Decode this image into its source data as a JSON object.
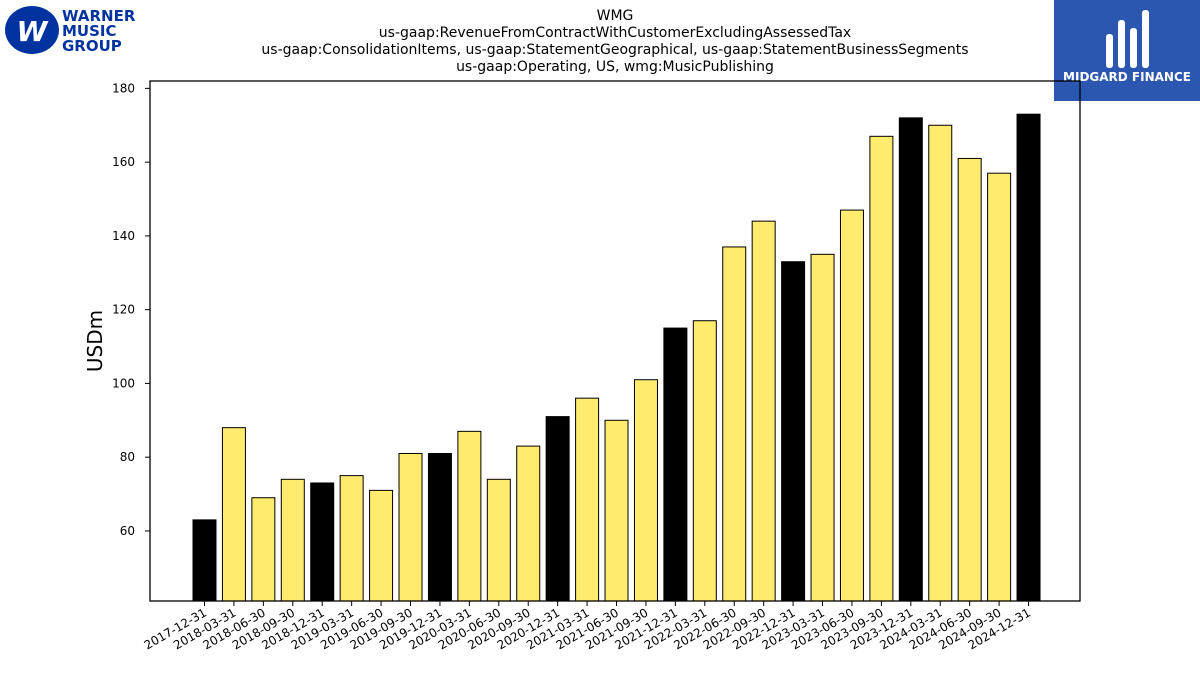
{
  "logo_left": {
    "line1": "WARNER",
    "line2": "MUSIC",
    "line3": "GROUP",
    "color": "#0033a0"
  },
  "logo_right": {
    "text": "MIDGARD FINANCE",
    "background": "#2b57b0"
  },
  "chart_data": {
    "type": "bar",
    "title_lines": [
      "WMG",
      "us-gaap:RevenueFromContractWithCustomerExcludingAssessedTax",
      "us-gaap:ConsolidationItems, us-gaap:StatementGeographical, us-gaap:StatementBusinessSegments",
      "us-gaap:Operating, US, wmg:MusicPublishing"
    ],
    "xlabel": "",
    "ylabel": "USDm",
    "ylim": [
      41,
      182
    ],
    "yticks": [
      60,
      80,
      100,
      120,
      140,
      160,
      180
    ],
    "grid": false,
    "colors": {
      "q4": "#000000",
      "other": "#ffeb6e",
      "edge": "#000000"
    },
    "categories": [
      "2017-12-31",
      "2018-03-31",
      "2018-06-30",
      "2018-09-30",
      "2018-12-31",
      "2019-03-31",
      "2019-06-30",
      "2019-09-30",
      "2019-12-31",
      "2020-03-31",
      "2020-06-30",
      "2020-09-30",
      "2020-12-31",
      "2021-03-31",
      "2021-06-30",
      "2021-09-30",
      "2021-12-31",
      "2022-03-31",
      "2022-06-30",
      "2022-09-30",
      "2022-12-31",
      "2023-03-31",
      "2023-06-30",
      "2023-09-30",
      "2023-12-31",
      "2024-03-31",
      "2024-06-30",
      "2024-09-30",
      "2024-12-31"
    ],
    "values": [
      63,
      88,
      69,
      74,
      73,
      75,
      71,
      81,
      81,
      87,
      74,
      83,
      91,
      96,
      90,
      101,
      115,
      117,
      137,
      144,
      133,
      135,
      147,
      167,
      172,
      170,
      161,
      157,
      173
    ]
  }
}
